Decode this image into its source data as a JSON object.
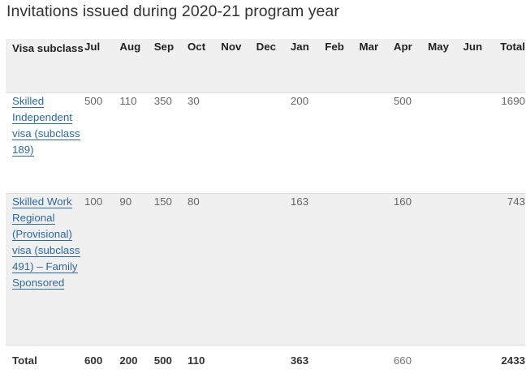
{
  "title": "Invitations issued during 2020-21 program year",
  "table": {
    "headers": [
      "Visa subclass",
      "Jul",
      "Aug",
      "Sep",
      "Oct",
      "Nov",
      "Dec",
      "Jan",
      "Feb",
      "Mar",
      "Apr",
      "May",
      "Jun",
      "Total"
    ],
    "rows": [
      {
        "visa": "Skilled Independent visa (subclass 189)",
        "values": [
          "500",
          "110",
          "350",
          "30",
          "",
          "",
          "200",
          "",
          "",
          "500",
          "",
          "",
          "1690"
        ]
      },
      {
        "visa": "Skilled Work Regional (Provisional) visa (subclass 491) – Family Sponsored",
        "values": [
          "100",
          "90",
          "150",
          "80",
          "",
          "",
          "163",
          "",
          "",
          "160",
          "",
          "",
          "743"
        ]
      }
    ],
    "total_row": {
      "label": "Total",
      "values": [
        "600",
        "200",
        "500",
        "110",
        "",
        "",
        "363",
        "",
        "",
        "660",
        "",
        "",
        "2433"
      ]
    }
  }
}
